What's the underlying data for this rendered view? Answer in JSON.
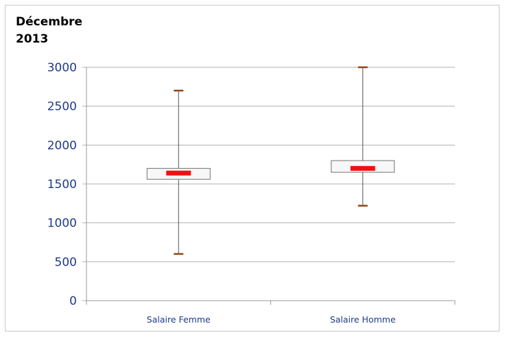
{
  "chart_data": {
    "type": "boxplot",
    "title": "Décembre\n2013",
    "xlabel": "",
    "ylabel": "",
    "ylim": [
      0,
      3000
    ],
    "yticks": [
      0,
      500,
      1000,
      1500,
      2000,
      2500,
      3000
    ],
    "yticklabels": [
      "0",
      "500",
      "1000",
      "1500",
      "2000",
      "2500",
      "3000"
    ],
    "categories": [
      "Salaire Femme",
      "Salaire Homme"
    ],
    "boxes": [
      {
        "category": "Salaire Femme",
        "min": 600,
        "q1": 1560,
        "median": 1640,
        "q3": 1700,
        "max": 2700
      },
      {
        "category": "Salaire Homme",
        "min": 1220,
        "q1": 1650,
        "median": 1700,
        "q3": 1800,
        "max": 3000
      }
    ],
    "grid": true,
    "legend": "none",
    "colors": {
      "median_marker": "#ee1111",
      "whisker_cap": "#8b4513",
      "box_fill": "#f7f7f7",
      "box_edge": "#707070",
      "whisker": "#555555",
      "gridline": "#b0b0b0",
      "axis_text": "#1f3a8a"
    }
  }
}
